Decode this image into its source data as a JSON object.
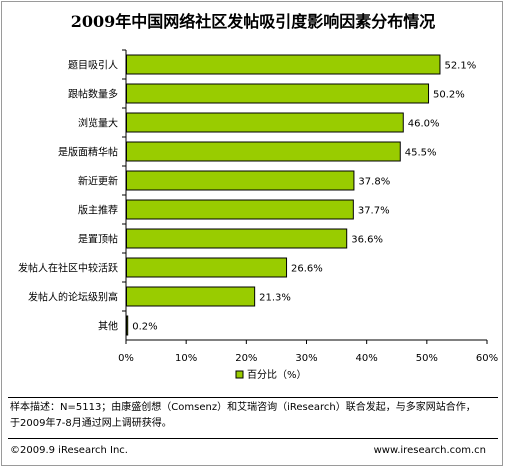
{
  "chart_data": {
    "type": "bar",
    "orientation": "horizontal",
    "title": "2009年中国网络社区发帖吸引度影响因素分布情况",
    "categories": [
      "题目吸引人",
      "跟帖数量多",
      "浏览量大",
      "是版面精华帖",
      "新近更新",
      "版主推荐",
      "是置顶帖",
      "发帖人在社区中较活跃",
      "发帖人的论坛级别高",
      "其他"
    ],
    "series": [
      {
        "name": "百分比（%）",
        "values": [
          52.1,
          50.2,
          46.0,
          45.5,
          37.8,
          37.7,
          36.6,
          26.6,
          21.3,
          0.2
        ]
      }
    ],
    "value_labels": [
      "52.1%",
      "50.2%",
      "46.0%",
      "45.5%",
      "37.8%",
      "37.7%",
      "36.6%",
      "26.6%",
      "21.3%",
      "0.2%"
    ],
    "xlim": [
      0,
      60
    ],
    "xticks": [
      "0%",
      "10%",
      "20%",
      "30%",
      "40%",
      "50%",
      "60%"
    ],
    "legend": {
      "label": "百分比（%）",
      "placement": "bottom"
    },
    "bar_color": "#99cc00",
    "grid": false
  },
  "note": {
    "line1": "样本描述：N=5113；由康盛创想（Comsenz）和艾瑞咨询（iResearch）联合发起，与多家网站合作，",
    "line2": "于2009年7-8月通过网上调研获得。"
  },
  "footer": {
    "copyright": "©2009.9 iResearch Inc.",
    "url": "www.iresearch.com.cn"
  }
}
